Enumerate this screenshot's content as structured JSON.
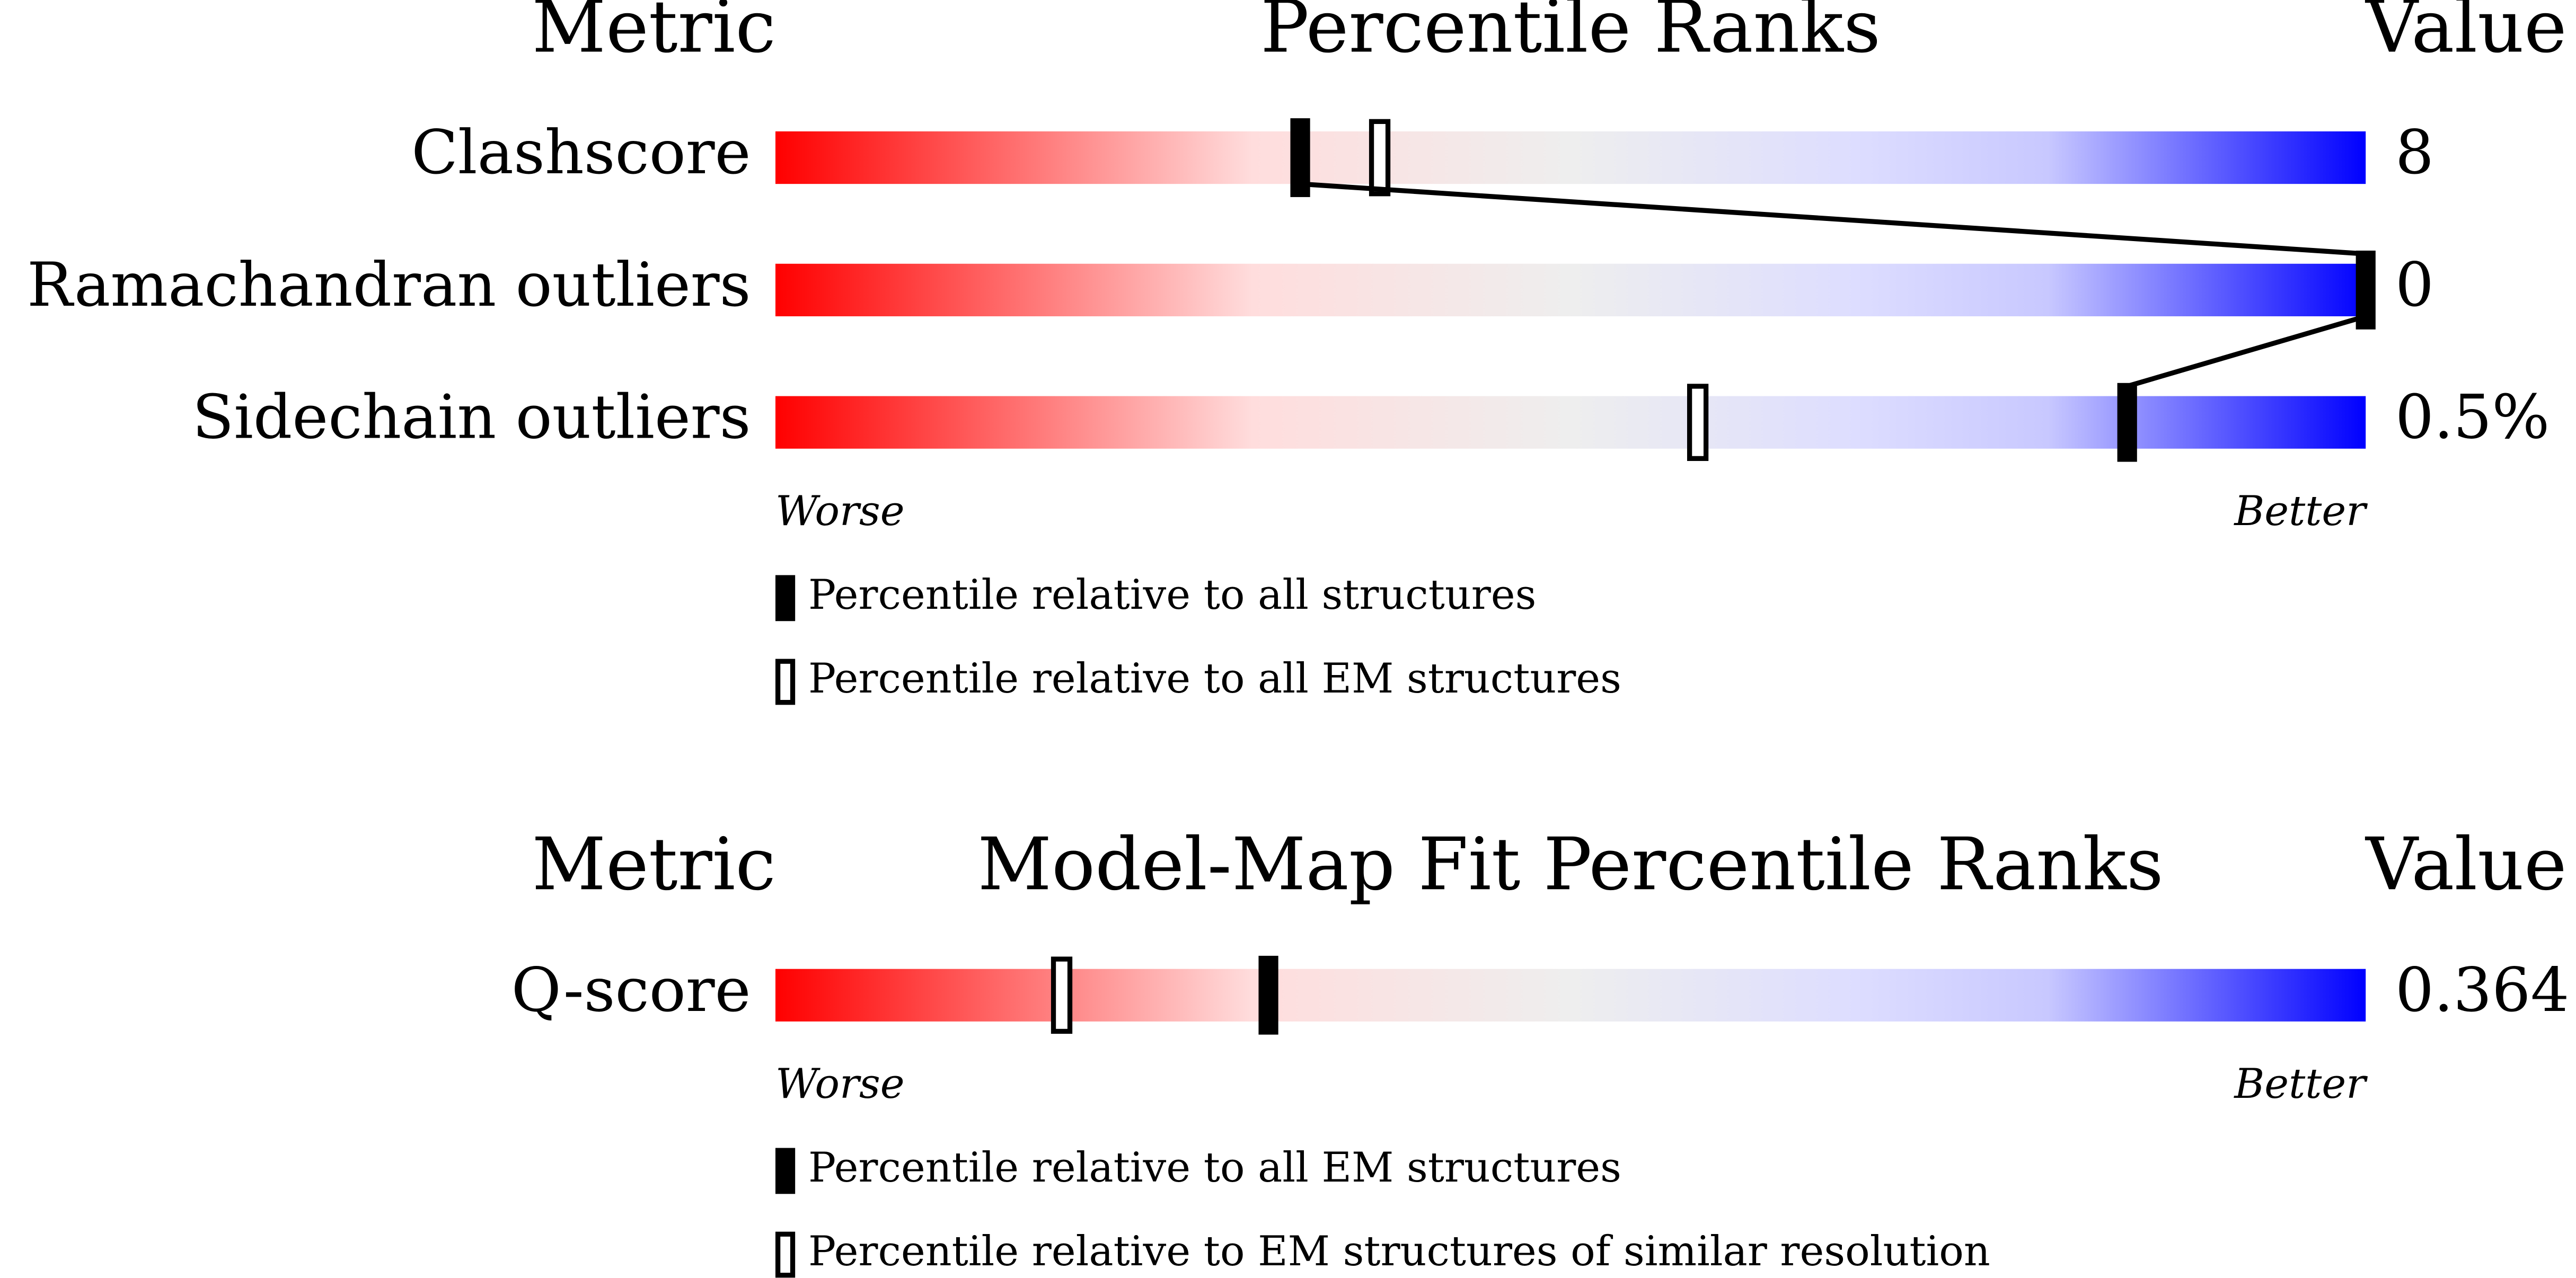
{
  "chart_data": [
    {
      "type": "percentile-slider",
      "headers": {
        "metric": "Metric",
        "title": "Percentile Ranks",
        "value": "Value"
      },
      "xlim": [
        0,
        100
      ],
      "metrics": [
        {
          "name": "Clashscore",
          "value": "8",
          "percentile_all": 33,
          "percentile_em": 38
        },
        {
          "name": "Ramachandran outliers",
          "value": "0",
          "percentile_all": 100,
          "percentile_em": null
        },
        {
          "name": "Sidechain outliers",
          "value": "0.5%",
          "percentile_all": 85,
          "percentile_em": 58
        }
      ],
      "worse": "Worse",
      "better": "Better",
      "legend": {
        "filled": "Percentile relative to all structures",
        "hollow": "Percentile relative to all EM structures"
      }
    },
    {
      "type": "percentile-slider",
      "headers": {
        "metric": "Metric",
        "title": "Model-Map Fit Percentile Ranks",
        "value": "Value"
      },
      "xlim": [
        0,
        100
      ],
      "metrics": [
        {
          "name": "Q-score",
          "value": "0.364",
          "percentile_all": 31,
          "percentile_em": 18
        }
      ],
      "worse": "Worse",
      "better": "Better",
      "legend": {
        "filled": "Percentile relative to all EM structures",
        "hollow": "Percentile relative to EM structures of similar resolution"
      }
    }
  ]
}
